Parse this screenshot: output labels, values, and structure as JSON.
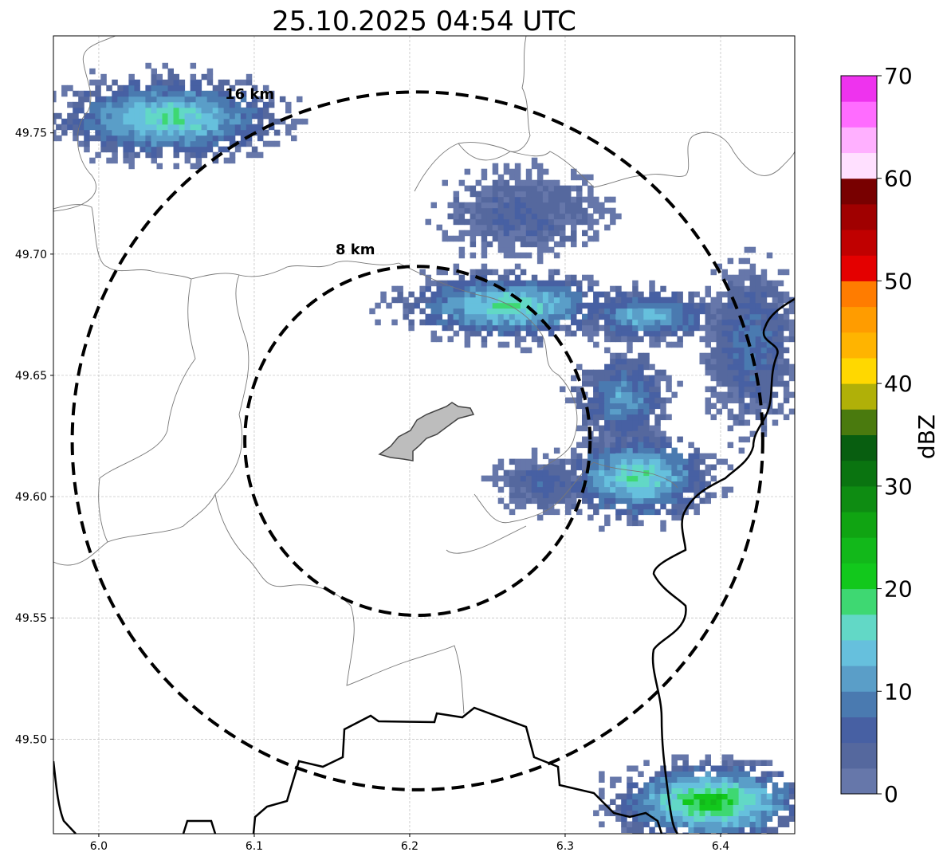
{
  "chart_data": {
    "type": "heatmap",
    "title": "25.10.2025 04:54 UTC",
    "xlim": [
      5.9708,
      6.4477
    ],
    "ylim": [
      49.461,
      49.79
    ],
    "x_ticks": [
      "6.0",
      "6.1",
      "6.2",
      "6.3",
      "6.4"
    ],
    "x_tick_values": [
      6.0,
      6.1,
      6.2,
      6.3,
      6.4
    ],
    "y_ticks": [
      "49.50",
      "49.55",
      "49.60",
      "49.65",
      "49.70",
      "49.75"
    ],
    "y_tick_values": [
      49.5,
      49.55,
      49.6,
      49.65,
      49.7,
      49.75
    ],
    "grid": true,
    "radar_center": {
      "lon": 6.205,
      "lat": 49.623
    },
    "range_rings": [
      {
        "label": "8 km",
        "km": 8,
        "label_lon": 6.165,
        "label_lat": 49.7
      },
      {
        "label": "16 km",
        "km": 16,
        "label_lon": 6.097,
        "label_lat": 49.764
      }
    ],
    "colorbar": {
      "label": "dBZ",
      "range": [
        0,
        70
      ],
      "step": 2.5,
      "ticks": [
        "0",
        "10",
        "20",
        "30",
        "40",
        "50",
        "60",
        "70"
      ],
      "colors": [
        "#6677aa",
        "#55689e",
        "#4760a3",
        "#4a7ab0",
        "#5a9ec8",
        "#66c0dd",
        "#62d8c6",
        "#3ed872",
        "#12c81c",
        "#12b81a",
        "#10a412",
        "#0e8c12",
        "#0a7410",
        "#085e10",
        "#4a7a0e",
        "#b0b008",
        "#ffd800",
        "#ffb400",
        "#ff9c00",
        "#ff7c00",
        "#e40000",
        "#c00000",
        "#a00000",
        "#780000",
        "#ffe0ff",
        "#ffb0ff",
        "#ff6cff",
        "#ee33ee"
      ]
    },
    "echo_regions": [
      {
        "lon": 6.044,
        "lat": 49.755,
        "rlon": 0.072,
        "rlat": 0.017,
        "peak_dbz": 19
      },
      {
        "lon": 6.27,
        "lat": 49.716,
        "rlon": 0.05,
        "rlat": 0.017,
        "peak_dbz": 6
      },
      {
        "lon": 6.262,
        "lat": 49.677,
        "rlon": 0.068,
        "rlat": 0.014,
        "peak_dbz": 19
      },
      {
        "lon": 6.352,
        "lat": 49.673,
        "rlon": 0.045,
        "rlat": 0.011,
        "peak_dbz": 15
      },
      {
        "lon": 6.336,
        "lat": 49.64,
        "rlon": 0.03,
        "rlat": 0.02,
        "peak_dbz": 12
      },
      {
        "lon": 6.345,
        "lat": 49.607,
        "rlon": 0.048,
        "rlat": 0.018,
        "peak_dbz": 19
      },
      {
        "lon": 6.282,
        "lat": 49.604,
        "rlon": 0.028,
        "rlat": 0.011,
        "peak_dbz": 7
      },
      {
        "lon": 6.42,
        "lat": 49.66,
        "rlon": 0.03,
        "rlat": 0.033,
        "peak_dbz": 9
      },
      {
        "lon": 6.39,
        "lat": 49.472,
        "rlon": 0.062,
        "rlat": 0.016,
        "peak_dbz": 24
      }
    ]
  }
}
